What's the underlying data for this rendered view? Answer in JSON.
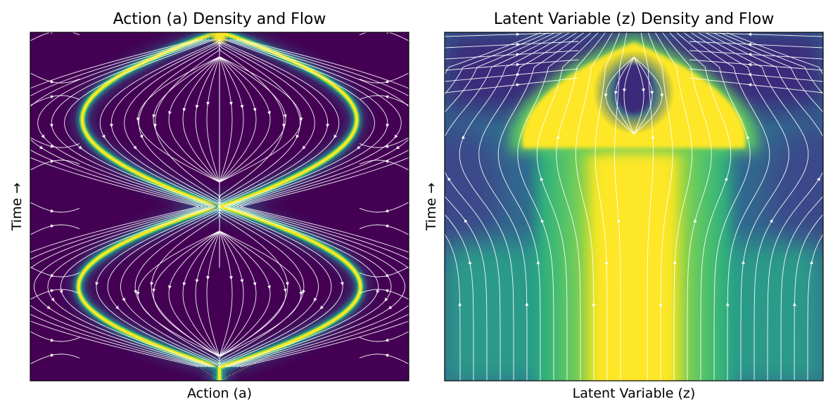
{
  "chart_data": [
    {
      "type": "heatmap",
      "title": "Action (a) Density and Flow",
      "xlabel": "Action (a)",
      "ylabel": "Time →",
      "x_ticks": [],
      "y_ticks": [],
      "grid": false,
      "legend": "none",
      "colormap": "viridis",
      "density_description": "two symmetric bright bands forming a figure-eight, crossing at mid time; narrow yellow spike at top center",
      "overlay": "white streamlines with arrowheads"
    },
    {
      "type": "heatmap",
      "title": "Latent Variable (z) Density and Flow",
      "xlabel": "Latent Variable (z)",
      "ylabel": "Time →",
      "x_ticks": [],
      "y_ticks": [],
      "grid": false,
      "legend": "none",
      "colormap": "viridis",
      "density_description": "broad yellow column widening into a mushroom-shaped cap near the top with a dark pocket at top center",
      "overlay": "white streamlines with arrowheads"
    }
  ],
  "colors": {
    "viridis_dark": "#440154",
    "viridis_deep": "#3b0f6f",
    "viridis_blue": "#31688e",
    "viridis_teal": "#21918c",
    "viridis_green": "#5ec962",
    "viridis_yellow": "#fde725",
    "streamline": "#ffffff"
  }
}
